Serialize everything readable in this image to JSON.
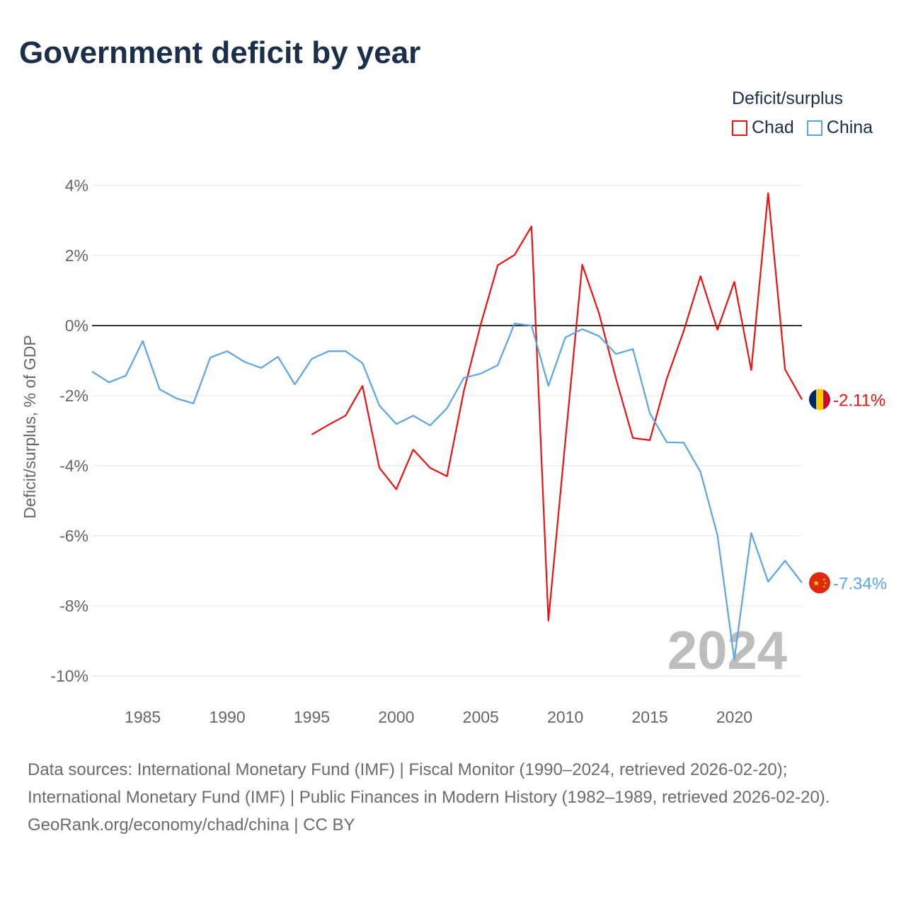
{
  "title": "Government deficit by year",
  "legend": {
    "title": "Deficit/surplus",
    "items": [
      {
        "name": "Chad",
        "color": "#ee1111"
      },
      {
        "name": "China",
        "color": "#5aa5ea"
      }
    ]
  },
  "footer": {
    "sources": "Data sources: International Monetary Fund (IMF) | Fiscal Monitor (1990–2024, retrieved 2026-02-20); International Monetary Fund (IMF) | Public Finances in Modern History (1982–1989, retrieved 2026-02-20).",
    "credit": "GeoRank.org/economy/chad/china | CC BY"
  },
  "chart_data": {
    "type": "line",
    "title": "Government deficit by year",
    "xlabel": "",
    "ylabel": "Deficit/surplus, % of GDP",
    "xlim": [
      1982,
      2024
    ],
    "ylim": [
      -10,
      4
    ],
    "yticks": [
      4,
      2,
      0,
      -2,
      -4,
      -6,
      -8,
      -10
    ],
    "ytick_labels": [
      "4%",
      "2%",
      "0%",
      "-2%",
      "-4%",
      "-6%",
      "-8%",
      "-10%"
    ],
    "xticks": [
      1985,
      1990,
      1995,
      2000,
      2005,
      2010,
      2015,
      2020
    ],
    "xtick_labels": [
      "1985",
      "1990",
      "1995",
      "2000",
      "2005",
      "2010",
      "2015",
      "2020"
    ],
    "year_label": "2024",
    "grid": true,
    "legend_position": "top-right",
    "series": [
      {
        "name": "Chad",
        "color": "#ee1111",
        "end_label": "-2.11%",
        "x": [
          1995,
          1996,
          1997,
          1998,
          1999,
          2000,
          2001,
          2002,
          2003,
          2004,
          2005,
          2006,
          2007,
          2008,
          2009,
          2010,
          2011,
          2012,
          2013,
          2014,
          2015,
          2016,
          2017,
          2018,
          2019,
          2020,
          2021,
          2022,
          2023,
          2024
        ],
        "values": [
          -3.11,
          -2.83,
          -2.57,
          -1.72,
          -4.06,
          -4.67,
          -3.54,
          -4.06,
          -4.3,
          -1.86,
          0.04,
          1.72,
          2.02,
          2.83,
          -8.42,
          -3.3,
          1.74,
          0.34,
          -1.52,
          -3.21,
          -3.27,
          -1.52,
          -0.16,
          1.41,
          -0.12,
          1.25,
          -1.27,
          3.78,
          -1.25,
          -2.11
        ]
      },
      {
        "name": "China",
        "color": "#5aa5ea",
        "end_label": "-7.34%",
        "x": [
          1982,
          1983,
          1984,
          1985,
          1986,
          1987,
          1988,
          1989,
          1990,
          1991,
          1992,
          1993,
          1994,
          1995,
          1996,
          1997,
          1998,
          1999,
          2000,
          2001,
          2002,
          2003,
          2004,
          2005,
          2006,
          2007,
          2008,
          2009,
          2010,
          2011,
          2012,
          2013,
          2014,
          2015,
          2016,
          2017,
          2018,
          2019,
          2020,
          2021,
          2022,
          2023,
          2024
        ],
        "values": [
          -1.31,
          -1.62,
          -1.43,
          -0.44,
          -1.82,
          -2.08,
          -2.22,
          -0.91,
          -0.73,
          -1.03,
          -1.21,
          -0.89,
          -1.68,
          -0.95,
          -0.73,
          -0.73,
          -1.07,
          -2.28,
          -2.81,
          -2.57,
          -2.85,
          -2.36,
          -1.49,
          -1.37,
          -1.13,
          0.06,
          0.0,
          -1.72,
          -0.34,
          -0.1,
          -0.3,
          -0.81,
          -0.67,
          -2.5,
          -3.33,
          -3.34,
          -4.18,
          -5.98,
          -9.53,
          -5.92,
          -7.31,
          -6.71,
          -7.34
        ]
      }
    ]
  }
}
